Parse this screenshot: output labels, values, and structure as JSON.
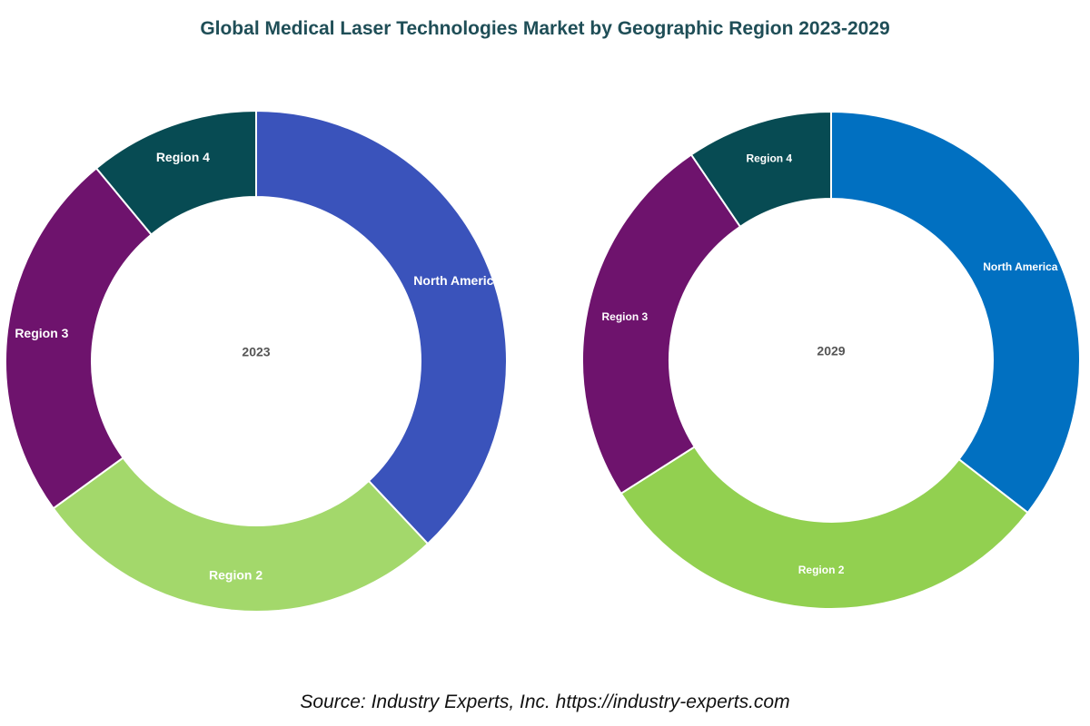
{
  "chart_data": [
    {
      "type": "pie",
      "variant": "donut",
      "center_label": "2023",
      "categories": [
        "North America",
        "Region 2",
        "Region 3",
        "Region 4"
      ],
      "values": [
        38,
        27,
        24,
        11
      ],
      "colors": [
        "#3A53BB",
        "#A3D86B",
        "#6E136D",
        "#074B53"
      ]
    },
    {
      "type": "pie",
      "variant": "donut",
      "center_label": "2029",
      "categories": [
        "North America",
        "Region 2",
        "Region 3",
        "Region 4"
      ],
      "values": [
        35.5,
        30.5,
        24.5,
        9.5
      ],
      "colors": [
        "#0170C1",
        "#92D050",
        "#6E136D",
        "#074B53"
      ]
    }
  ],
  "title": "Global Medical Laser Technologies Market by Geographic Region 2023-2029",
  "source": "Source: Industry Experts, Inc. https://industry-experts.com"
}
